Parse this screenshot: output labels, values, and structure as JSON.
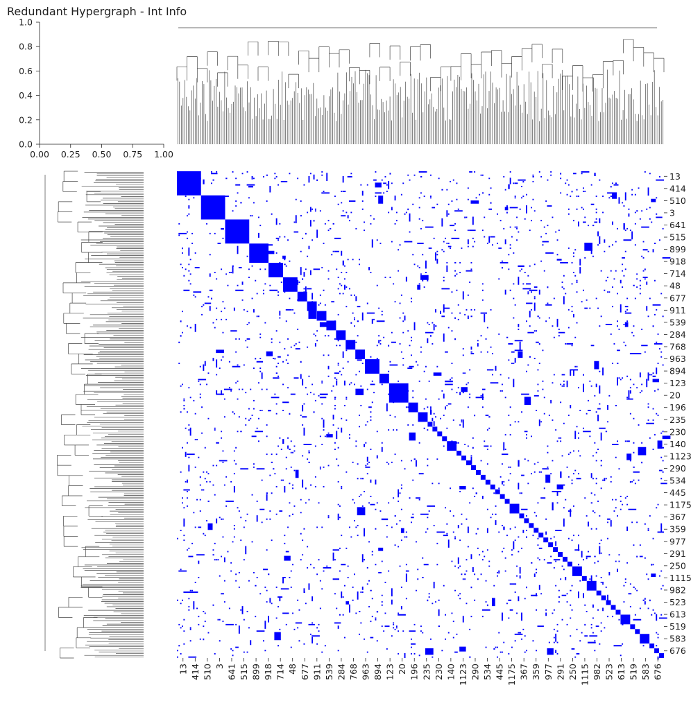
{
  "window": {
    "title": "Redundant Hypergraph - Int Info"
  },
  "chart_data": {
    "type": "heatmap",
    "title": "Redundant Hypergraph - Int Info",
    "description_of_layout": "clustermap with column dendrogram on top, row dendrogram on left, binary heatmap in center",
    "colors": {
      "cell_on": "#0000ff",
      "cell_off": "#ffffff",
      "dendrogram": "#444444"
    },
    "top_dendrogram_axis": {
      "yticks": [
        "0.0",
        "0.2",
        "0.4",
        "0.6",
        "0.8",
        "1.0"
      ],
      "xticks": [
        "0.00",
        "0.25",
        "0.50",
        "0.75",
        "1.00"
      ],
      "ylim": [
        0,
        1
      ],
      "xlim": [
        0,
        1
      ]
    },
    "row_labels": [
      "13",
      "414",
      "510",
      "3",
      "641",
      "515",
      "899",
      "918",
      "714",
      "48",
      "677",
      "911",
      "539",
      "284",
      "768",
      "963",
      "894",
      "123",
      "20",
      "196",
      "235",
      "230",
      "140",
      "1123",
      "290",
      "534",
      "445",
      "1175",
      "367",
      "359",
      "977",
      "291",
      "250",
      "1115",
      "982",
      "523",
      "613",
      "519",
      "583",
      "676"
    ],
    "column_labels": [
      "13",
      "414",
      "510",
      "3",
      "641",
      "515",
      "899",
      "918",
      "714",
      "48",
      "677",
      "911",
      "539",
      "284",
      "768",
      "963",
      "894",
      "123",
      "20",
      "196",
      "235",
      "230",
      "140",
      "1123",
      "290",
      "534",
      "445",
      "1175",
      "367",
      "359",
      "977",
      "291",
      "250",
      "1115",
      "982",
      "523",
      "613",
      "519",
      "583",
      "676"
    ],
    "diagonal_blocks_relative_sizes": [
      5,
      5,
      5,
      4,
      3,
      3,
      2,
      2,
      2,
      2,
      2,
      2,
      2,
      3,
      2,
      4,
      2,
      2,
      1,
      1,
      1,
      1,
      2,
      1,
      1,
      1,
      1,
      1,
      1,
      1,
      1,
      1,
      1,
      1,
      2,
      1,
      1,
      1,
      1,
      1,
      1,
      1,
      1,
      1,
      1,
      1,
      2,
      1,
      2,
      1,
      1,
      1,
      1,
      1,
      2,
      1,
      1,
      2,
      1,
      1,
      1
    ],
    "legend": "none"
  }
}
